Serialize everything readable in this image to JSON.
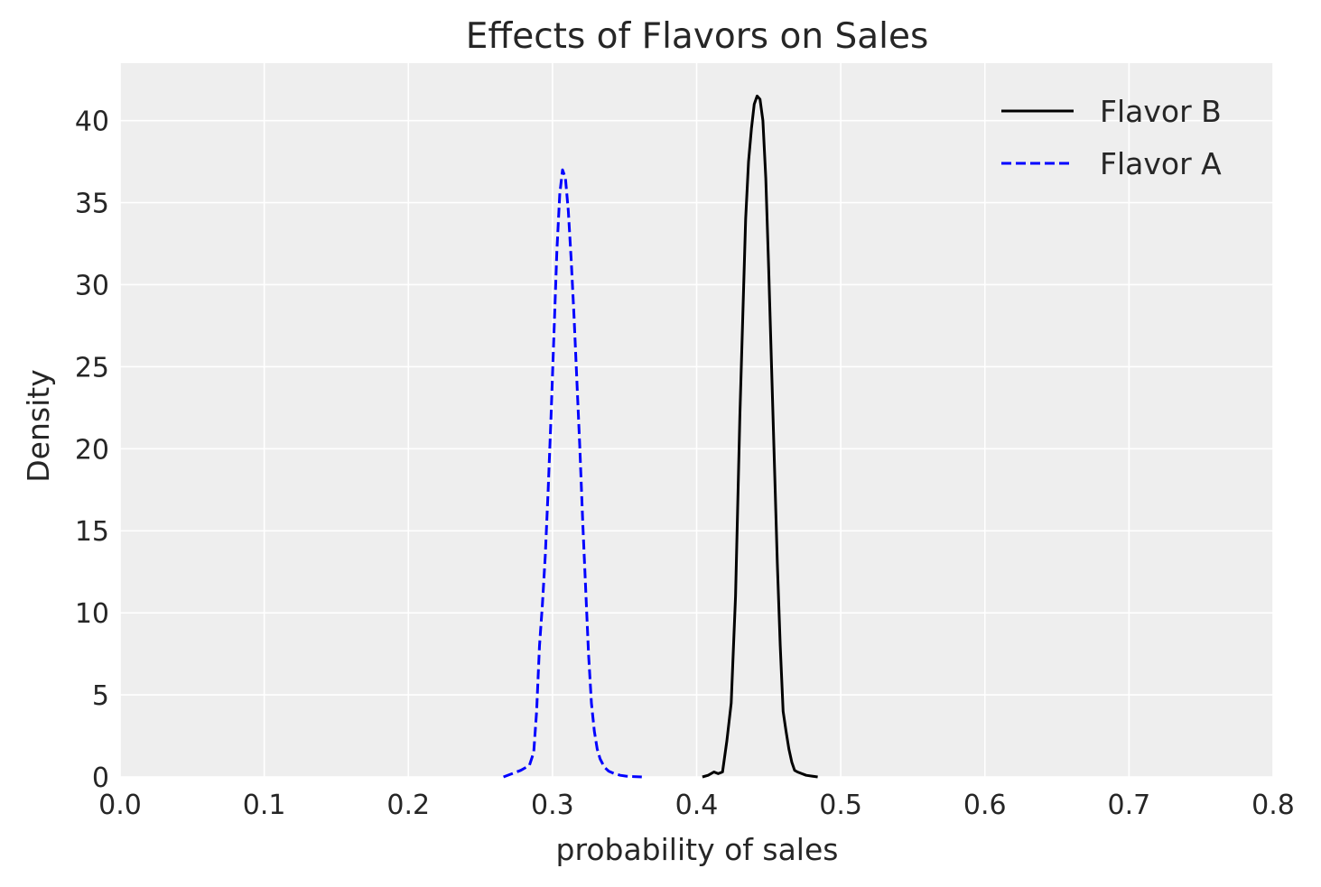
{
  "chart_data": {
    "type": "line",
    "title": "Effects of Flavors on Sales",
    "xlabel": "probability of sales",
    "ylabel": "Density",
    "xlim": [
      0.0,
      0.8
    ],
    "ylim": [
      0,
      43.5
    ],
    "xticks": [
      "0.0",
      "0.1",
      "0.2",
      "0.3",
      "0.4",
      "0.5",
      "0.6",
      "0.7",
      "0.8"
    ],
    "yticks": [
      "0",
      "5",
      "10",
      "15",
      "20",
      "25",
      "30",
      "35",
      "40"
    ],
    "grid": true,
    "background": "#eeeeee",
    "legend_position": "top-right",
    "series": [
      {
        "name": "Flavor B",
        "color": "#000000",
        "linestyle": "solid",
        "x": [
          0.404,
          0.408,
          0.412,
          0.415,
          0.418,
          0.421,
          0.424,
          0.427,
          0.43,
          0.432,
          0.434,
          0.436,
          0.438,
          0.44,
          0.442,
          0.444,
          0.446,
          0.448,
          0.45,
          0.452,
          0.454,
          0.456,
          0.458,
          0.46,
          0.462,
          0.464,
          0.466,
          0.468,
          0.47,
          0.473,
          0.476,
          0.48,
          0.484
        ],
        "y": [
          0,
          0.1,
          0.3,
          0.2,
          0.3,
          2.2,
          4.5,
          11.0,
          22.0,
          28.0,
          34.0,
          37.5,
          39.5,
          41.0,
          41.5,
          41.3,
          40.0,
          36.5,
          31.0,
          25.0,
          19.0,
          13.0,
          8.0,
          4.0,
          2.8,
          1.7,
          0.9,
          0.4,
          0.3,
          0.2,
          0.1,
          0.05,
          0
        ]
      },
      {
        "name": "Flavor A",
        "color": "#0000ff",
        "linestyle": "dashed",
        "x": [
          0.266,
          0.272,
          0.278,
          0.284,
          0.287,
          0.289,
          0.291,
          0.293,
          0.295,
          0.297,
          0.299,
          0.301,
          0.303,
          0.305,
          0.307,
          0.309,
          0.311,
          0.313,
          0.315,
          0.317,
          0.319,
          0.321,
          0.323,
          0.325,
          0.327,
          0.329,
          0.331,
          0.333,
          0.336,
          0.339,
          0.343,
          0.347,
          0.351,
          0.356,
          0.362
        ],
        "y": [
          0,
          0.2,
          0.4,
          0.7,
          1.5,
          4.0,
          8.0,
          10.5,
          13.5,
          17.5,
          22.0,
          27.0,
          32.0,
          35.5,
          37.0,
          36.5,
          34.5,
          31.5,
          28.0,
          24.0,
          20.0,
          15.5,
          11.5,
          7.5,
          4.5,
          2.8,
          1.7,
          1.1,
          0.6,
          0.35,
          0.2,
          0.1,
          0.05,
          0.02,
          0
        ]
      }
    ]
  }
}
